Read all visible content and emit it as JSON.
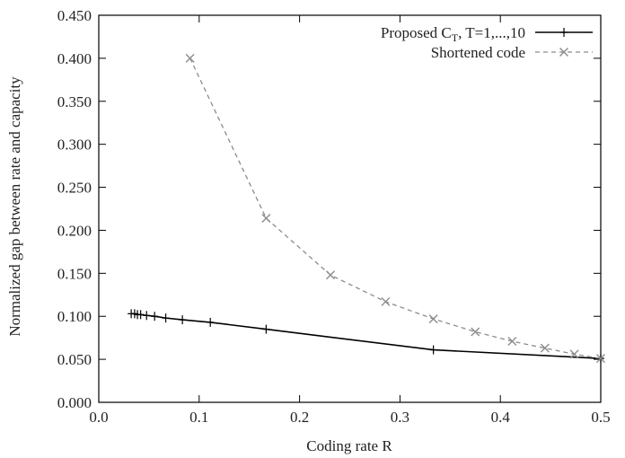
{
  "chart_data": {
    "type": "line",
    "xlabel": "Coding rate R",
    "ylabel": "Normalized gap between rate and capacity",
    "xlim": [
      0.0,
      0.5
    ],
    "ylim": [
      0.0,
      0.45
    ],
    "xticks": [
      "0.0",
      "0.1",
      "0.2",
      "0.3",
      "0.4",
      "0.5"
    ],
    "xtick_values": [
      0.0,
      0.1,
      0.2,
      0.3,
      0.4,
      0.5
    ],
    "yticks": [
      "0.000",
      "0.050",
      "0.100",
      "0.150",
      "0.200",
      "0.250",
      "0.300",
      "0.350",
      "0.400",
      "0.450"
    ],
    "ytick_values": [
      0.0,
      0.05,
      0.1,
      0.15,
      0.2,
      0.25,
      0.3,
      0.35,
      0.4,
      0.45
    ],
    "grid": false,
    "legend_position": "top-right",
    "series": [
      {
        "name_main": "Proposed C",
        "name_sub": "T",
        "name_rest": ", T=1,...,10",
        "color": "#000000",
        "marker": "plus",
        "dashed": false,
        "x": [
          0.0323,
          0.0357,
          0.0385,
          0.0417,
          0.0476,
          0.0556,
          0.0667,
          0.0833,
          0.1111,
          0.1667,
          0.3333,
          0.5
        ],
        "y": [
          0.103,
          0.103,
          0.102,
          0.102,
          0.101,
          0.1,
          0.098,
          0.096,
          0.093,
          0.085,
          0.061,
          0.051
        ]
      },
      {
        "name": "Shortened code",
        "color": "#8c8c8c",
        "marker": "x",
        "dashed": true,
        "x": [
          0.0909,
          0.1667,
          0.2308,
          0.2857,
          0.3333,
          0.375,
          0.4118,
          0.4444,
          0.4737,
          0.5
        ],
        "y": [
          0.4,
          0.214,
          0.148,
          0.117,
          0.097,
          0.082,
          0.071,
          0.063,
          0.056,
          0.051
        ]
      }
    ]
  }
}
